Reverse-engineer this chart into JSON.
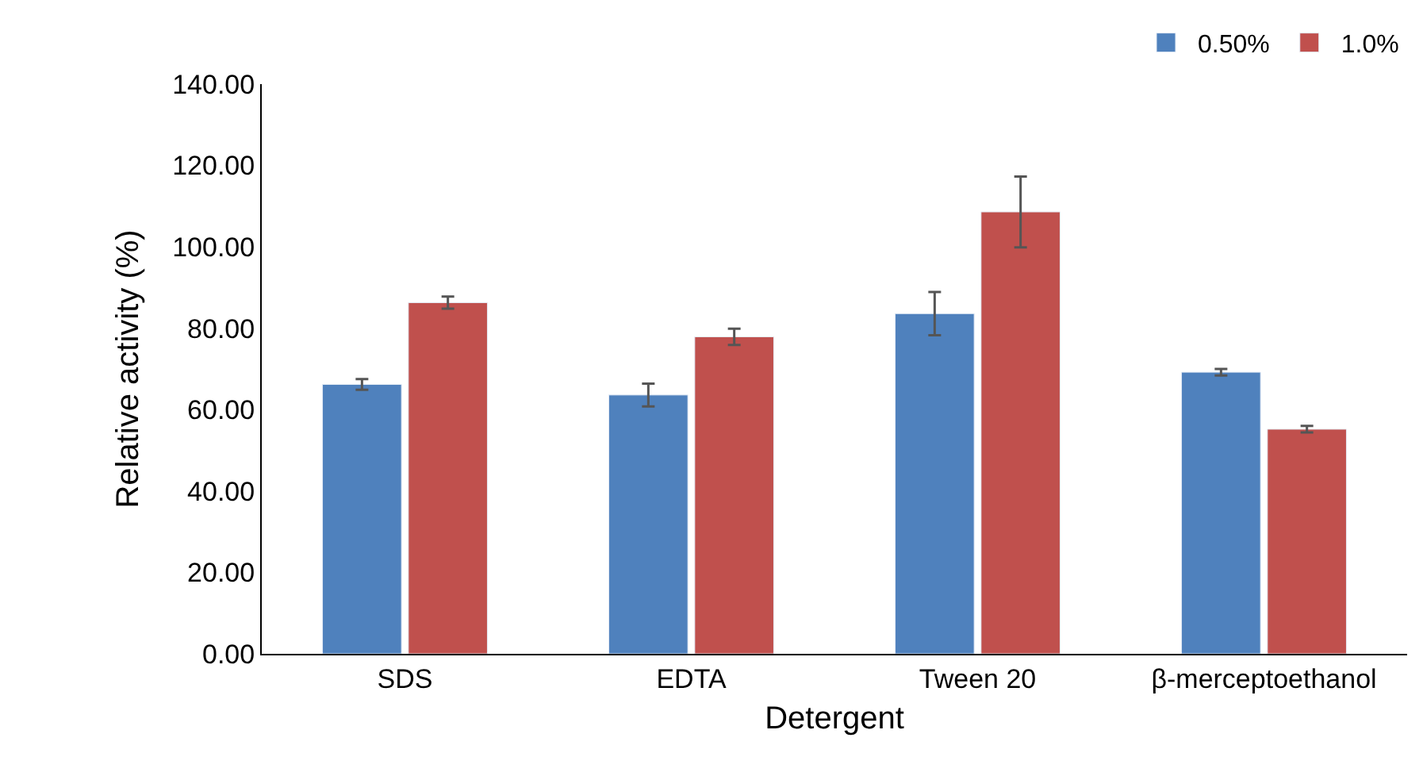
{
  "chart_data": {
    "type": "bar",
    "xlabel": "Detergent",
    "ylabel": "Relative activity (%)",
    "categories": [
      "SDS",
      "EDTA",
      "Tween 20",
      "β-merceptoethanol"
    ],
    "series": [
      {
        "name": "0.50%",
        "color": "#4f81bd",
        "values": [
          66.2,
          63.6,
          83.6,
          69.2
        ],
        "errors": [
          1.3,
          2.8,
          5.3,
          0.8
        ]
      },
      {
        "name": "1.0%",
        "color": "#c0504d",
        "values": [
          86.3,
          77.9,
          108.6,
          55.2
        ],
        "errors": [
          1.5,
          2.0,
          8.7,
          0.8
        ]
      }
    ],
    "ylim": [
      0,
      140
    ],
    "yticks": [
      {
        "value": 0,
        "label": "0.00"
      },
      {
        "value": 20,
        "label": "20.00"
      },
      {
        "value": 40,
        "label": "40.00"
      },
      {
        "value": 60,
        "label": "60.00"
      },
      {
        "value": 80,
        "label": "80.00"
      },
      {
        "value": 100,
        "label": "100.00"
      },
      {
        "value": 120,
        "label": "120.00"
      },
      {
        "value": 140,
        "label": "140.00"
      }
    ],
    "grid": false,
    "legend": "top right"
  }
}
